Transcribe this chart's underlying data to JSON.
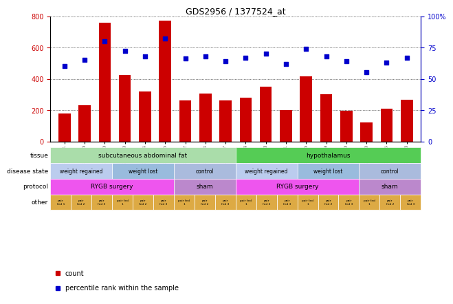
{
  "title": "GDS2956 / 1377524_at",
  "samples": [
    "GSM206031",
    "GSM206036",
    "GSM206040",
    "GSM206043",
    "GSM206044",
    "GSM206045",
    "GSM206022",
    "GSM206024",
    "GSM206027",
    "GSM206034",
    "GSM206038",
    "GSM206041",
    "GSM206046",
    "GSM206049",
    "GSM206050",
    "GSM206023",
    "GSM206025",
    "GSM206028"
  ],
  "counts": [
    180,
    232,
    757,
    425,
    318,
    773,
    260,
    305,
    260,
    278,
    350,
    200,
    415,
    300,
    195,
    120,
    210,
    265
  ],
  "percentile_ranks": [
    60,
    65,
    80,
    72,
    68,
    82,
    66,
    68,
    64,
    67,
    70,
    62,
    74,
    68,
    64,
    55,
    63,
    67
  ],
  "ylim_left": [
    0,
    800
  ],
  "ylim_right": [
    0,
    100
  ],
  "yticks_left": [
    0,
    200,
    400,
    600,
    800
  ],
  "yticks_right": [
    0,
    25,
    50,
    75,
    100
  ],
  "bar_color": "#CC0000",
  "dot_color": "#0000CC",
  "tissue_regions": [
    {
      "label": "subcutaneous abdominal fat",
      "start": 0,
      "end": 9,
      "color": "#AADDAA"
    },
    {
      "label": "hypothalamus",
      "start": 9,
      "end": 18,
      "color": "#55CC55"
    }
  ],
  "disease_state_regions": [
    {
      "label": "weight regained",
      "start": 0,
      "end": 3,
      "color": "#BBCCEE"
    },
    {
      "label": "weight lost",
      "start": 3,
      "end": 6,
      "color": "#99BBDD"
    },
    {
      "label": "control",
      "start": 6,
      "end": 9,
      "color": "#AABBDD"
    },
    {
      "label": "weight regained",
      "start": 9,
      "end": 12,
      "color": "#BBCCEE"
    },
    {
      "label": "weight lost",
      "start": 12,
      "end": 15,
      "color": "#99BBDD"
    },
    {
      "label": "control",
      "start": 15,
      "end": 18,
      "color": "#AABBDD"
    }
  ],
  "protocol_regions": [
    {
      "label": "RYGB surgery",
      "start": 0,
      "end": 6,
      "color": "#EE55EE"
    },
    {
      "label": "sham",
      "start": 6,
      "end": 9,
      "color": "#BB88CC"
    },
    {
      "label": "RYGB surgery",
      "start": 9,
      "end": 15,
      "color": "#EE55EE"
    },
    {
      "label": "sham",
      "start": 15,
      "end": 18,
      "color": "#BB88CC"
    }
  ],
  "other_labels": [
    "pair\nfed 1",
    "pair\nfed 2",
    "pair\nfed 3",
    "pair fed\n1",
    "pair\nfed 2",
    "pair\nfed 3",
    "pair fed\n1",
    "pair\nfed 2",
    "pair\nfed 3",
    "pair fed\n1",
    "pair\nfed 2",
    "pair\nfed 3",
    "pair fed\n1",
    "pair\nfed 2",
    "pair\nfed 3",
    "pair fed\n1",
    "pair\nfed 2",
    "pair\nfed 3"
  ],
  "other_color": "#DDAA44",
  "row_labels": [
    "tissue",
    "disease state",
    "protocol",
    "other"
  ],
  "background_color": "#FFFFFF"
}
